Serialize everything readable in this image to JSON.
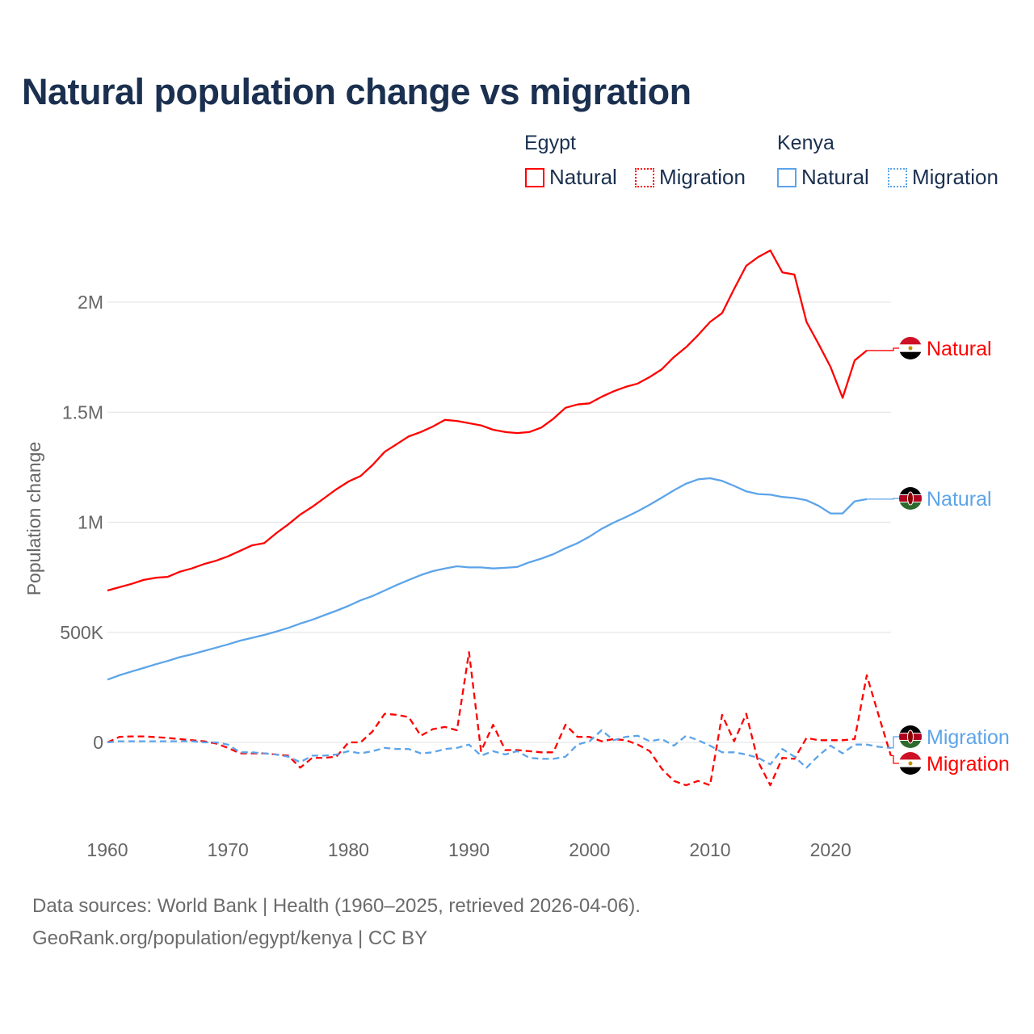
{
  "title": "Natural population change vs migration",
  "legend": {
    "groups": [
      {
        "name": "Egypt",
        "items": [
          "Natural",
          "Migration"
        ]
      },
      {
        "name": "Kenya",
        "items": [
          "Natural",
          "Migration"
        ]
      }
    ]
  },
  "source": {
    "line1": "Data sources: World Bank | Health (1960–2025, retrieved 2026-04-06).",
    "line2": "GeoRank.org/population/egypt/kenya | CC BY"
  },
  "chart_data": {
    "type": "line",
    "title": "Natural population change vs migration",
    "xlabel": "",
    "ylabel": "Population change",
    "xlim": [
      1960,
      2025
    ],
    "ylim": [
      -250000,
      2300000
    ],
    "x_ticks": [
      "1960",
      "1970",
      "1980",
      "1990",
      "2000",
      "2010",
      "2020"
    ],
    "y_ticks": [
      {
        "v": 0,
        "label": "0"
      },
      {
        "v": 500000,
        "label": "500K"
      },
      {
        "v": 1000000,
        "label": "1M"
      },
      {
        "v": 1500000,
        "label": "1.5M"
      },
      {
        "v": 2000000,
        "label": "2M"
      }
    ],
    "grid": true,
    "colors": {
      "egypt": "#ff0000",
      "kenya": "#5ca4ea"
    },
    "series": [
      {
        "name": "Egypt Natural",
        "end_label": "Natural",
        "country": "egypt",
        "dash": false,
        "start": 1960,
        "values_k": [
          690,
          705,
          720,
          738,
          748,
          752,
          775,
          790,
          810,
          825,
          845,
          870,
          895,
          905,
          950,
          990,
          1035,
          1070,
          1110,
          1150,
          1185,
          1210,
          1260,
          1320,
          1355,
          1390,
          1410,
          1435,
          1465,
          1460,
          1450,
          1440,
          1420,
          1410,
          1405,
          1410,
          1430,
          1470,
          1520,
          1535,
          1540,
          1570,
          1595,
          1615,
          1630,
          1660,
          1695,
          1750,
          1795,
          1850,
          1910,
          1950,
          2060,
          2165,
          2205,
          2235,
          2135,
          2125,
          1910,
          1810,
          1705,
          1565,
          1735,
          1780
        ]
      },
      {
        "name": "Egypt Migration",
        "end_label": "Migration",
        "country": "egypt",
        "dash": true,
        "start": 1960,
        "values_k": [
          0,
          25,
          27,
          27,
          24,
          20,
          15,
          10,
          5,
          -5,
          -25,
          -50,
          -50,
          -50,
          -55,
          -60,
          -115,
          -70,
          -70,
          -65,
          0,
          0,
          50,
          130,
          125,
          115,
          30,
          60,
          70,
          55,
          410,
          -40,
          80,
          -35,
          -35,
          -40,
          -45,
          -45,
          80,
          25,
          25,
          5,
          15,
          10,
          -10,
          -40,
          -120,
          -175,
          -195,
          -175,
          -195,
          125,
          5,
          130,
          -90,
          -195,
          -70,
          -75,
          20,
          10,
          10,
          10,
          15,
          305,
          120,
          -60
        ]
      },
      {
        "name": "Kenya Natural",
        "end_label": "Natural",
        "country": "kenya",
        "dash": false,
        "start": 1960,
        "values_k": [
          285,
          305,
          322,
          338,
          355,
          370,
          387,
          400,
          415,
          430,
          445,
          462,
          475,
          488,
          503,
          520,
          540,
          557,
          578,
          598,
          620,
          645,
          665,
          690,
          715,
          738,
          760,
          778,
          790,
          800,
          795,
          795,
          790,
          793,
          797,
          818,
          835,
          855,
          882,
          905,
          935,
          970,
          998,
          1023,
          1050,
          1080,
          1112,
          1145,
          1175,
          1195,
          1200,
          1188,
          1165,
          1140,
          1128,
          1125,
          1115,
          1110,
          1100,
          1075,
          1040,
          1040,
          1095,
          1105
        ]
      },
      {
        "name": "Kenya Migration",
        "end_label": "Migration",
        "country": "kenya",
        "dash": true,
        "start": 1960,
        "values_k": [
          0,
          5,
          5,
          5,
          5,
          5,
          5,
          5,
          0,
          0,
          -10,
          -45,
          -45,
          -50,
          -55,
          -65,
          -90,
          -60,
          -60,
          -55,
          -40,
          -50,
          -40,
          -25,
          -30,
          -30,
          -50,
          -45,
          -30,
          -25,
          -10,
          -60,
          -40,
          -55,
          -40,
          -70,
          -75,
          -75,
          -65,
          -10,
          5,
          55,
          10,
          25,
          30,
          5,
          15,
          -15,
          30,
          10,
          -15,
          -45,
          -45,
          -55,
          -70,
          -100,
          -30,
          -65,
          -115,
          -60,
          -15,
          -50,
          -10,
          -10,
          -20,
          -25
        ]
      }
    ]
  }
}
